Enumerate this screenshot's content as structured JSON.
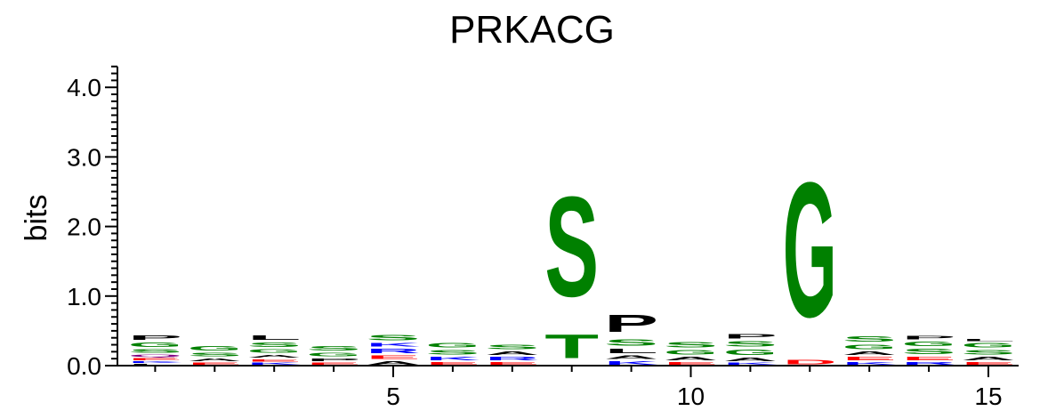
{
  "chart_data": {
    "type": "sequence-logo",
    "title": "PRKACG",
    "ylabel": "bits",
    "ylim": [
      0,
      4.3
    ],
    "y_ticks": [
      "0.0",
      "1.0",
      "2.0",
      "3.0",
      "4.0"
    ],
    "x_ticks": [
      {
        "value": 5,
        "label": "5"
      },
      {
        "value": 10,
        "label": "10"
      },
      {
        "value": 15,
        "label": "15"
      }
    ],
    "colors": {
      "polar": "#008000",
      "basic": "#0000ff",
      "acidic": "#ff0000",
      "hydrophobic": "#000000",
      "other": "#800080"
    },
    "positions": [
      {
        "pos": 1,
        "stack": [
          [
            "L",
            0.03,
            "#000000"
          ],
          [
            "K",
            0.04,
            "#0000ff"
          ],
          [
            "E",
            0.05,
            "#ff0000"
          ],
          [
            "Q",
            0.05,
            "#800080"
          ],
          [
            "S",
            0.08,
            "#008000"
          ],
          [
            "G",
            0.1,
            "#008000"
          ],
          [
            "P",
            0.1,
            "#000000"
          ]
        ]
      },
      {
        "pos": 2,
        "stack": [
          [
            "E",
            0.05,
            "#ff0000"
          ],
          [
            "A",
            0.07,
            "#000000"
          ],
          [
            "S",
            0.08,
            "#008000"
          ],
          [
            "G",
            0.1,
            "#008000"
          ]
        ]
      },
      {
        "pos": 3,
        "stack": [
          [
            "K",
            0.05,
            "#0000ff"
          ],
          [
            "E",
            0.05,
            "#ff0000"
          ],
          [
            "A",
            0.07,
            "#000000"
          ],
          [
            "G",
            0.08,
            "#008000"
          ],
          [
            "S",
            0.1,
            "#008000"
          ],
          [
            "L",
            0.1,
            "#000000"
          ]
        ]
      },
      {
        "pos": 4,
        "stack": [
          [
            "E",
            0.05,
            "#ff0000"
          ],
          [
            "P",
            0.07,
            "#000000"
          ],
          [
            "G",
            0.08,
            "#008000"
          ],
          [
            "S",
            0.1,
            "#008000"
          ]
        ]
      },
      {
        "pos": 5,
        "stack": [
          [
            "A",
            0.08,
            "#000000"
          ],
          [
            "E",
            0.08,
            "#ff0000"
          ],
          [
            "R",
            0.1,
            "#0000ff"
          ],
          [
            "K",
            0.08,
            "#0000ff"
          ],
          [
            "S",
            0.12,
            "#008000"
          ]
        ]
      },
      {
        "pos": 6,
        "stack": [
          [
            "E",
            0.06,
            "#ff0000"
          ],
          [
            "K",
            0.08,
            "#0000ff"
          ],
          [
            "S",
            0.1,
            "#008000"
          ],
          [
            "G",
            0.1,
            "#008000"
          ]
        ]
      },
      {
        "pos": 7,
        "stack": [
          [
            "E",
            0.06,
            "#ff0000"
          ],
          [
            "R",
            0.08,
            "#0000ff"
          ],
          [
            "A",
            0.08,
            "#000000"
          ],
          [
            "S",
            0.1,
            "#008000"
          ]
        ]
      },
      {
        "pos": 8,
        "stack": [
          [
            "T",
            0.55,
            "#008000"
          ],
          [
            "S",
            2.3,
            "#008000"
          ]
        ]
      },
      {
        "pos": 9,
        "stack": [
          [
            "K",
            0.08,
            "#0000ff"
          ],
          [
            "A",
            0.08,
            "#000000"
          ],
          [
            "L",
            0.1,
            "#000000"
          ],
          [
            "S",
            0.15,
            "#008000"
          ],
          [
            "P",
            0.4,
            "#000000"
          ]
        ]
      },
      {
        "pos": 10,
        "stack": [
          [
            "E",
            0.06,
            "#ff0000"
          ],
          [
            "A",
            0.08,
            "#000000"
          ],
          [
            "G",
            0.1,
            "#008000"
          ],
          [
            "S",
            0.12,
            "#008000"
          ]
        ]
      },
      {
        "pos": 11,
        "stack": [
          [
            "K",
            0.05,
            "#0000ff"
          ],
          [
            "A",
            0.08,
            "#000000"
          ],
          [
            "G",
            0.12,
            "#008000"
          ],
          [
            "S",
            0.12,
            "#008000"
          ],
          [
            "P",
            0.1,
            "#000000"
          ]
        ]
      },
      {
        "pos": 12,
        "stack": [
          [
            "D",
            0.1,
            "#ff0000"
          ],
          [
            "G",
            3.1,
            "#008000"
          ]
        ]
      },
      {
        "pos": 13,
        "stack": [
          [
            "K",
            0.06,
            "#0000ff"
          ],
          [
            "E",
            0.08,
            "#ff0000"
          ],
          [
            "A",
            0.08,
            "#000000"
          ],
          [
            "G",
            0.1,
            "#008000"
          ],
          [
            "S",
            0.12,
            "#008000"
          ]
        ]
      },
      {
        "pos": 14,
        "stack": [
          [
            "R",
            0.06,
            "#0000ff"
          ],
          [
            "E",
            0.08,
            "#ff0000"
          ],
          [
            "S",
            0.12,
            "#008000"
          ],
          [
            "G",
            0.1,
            "#008000"
          ],
          [
            "P",
            0.08,
            "#000000"
          ]
        ]
      },
      {
        "pos": 15,
        "stack": [
          [
            "E",
            0.06,
            "#ff0000"
          ],
          [
            "A",
            0.08,
            "#000000"
          ],
          [
            "S",
            0.1,
            "#008000"
          ],
          [
            "G",
            0.1,
            "#008000"
          ],
          [
            "L",
            0.05,
            "#000000"
          ]
        ]
      }
    ]
  }
}
